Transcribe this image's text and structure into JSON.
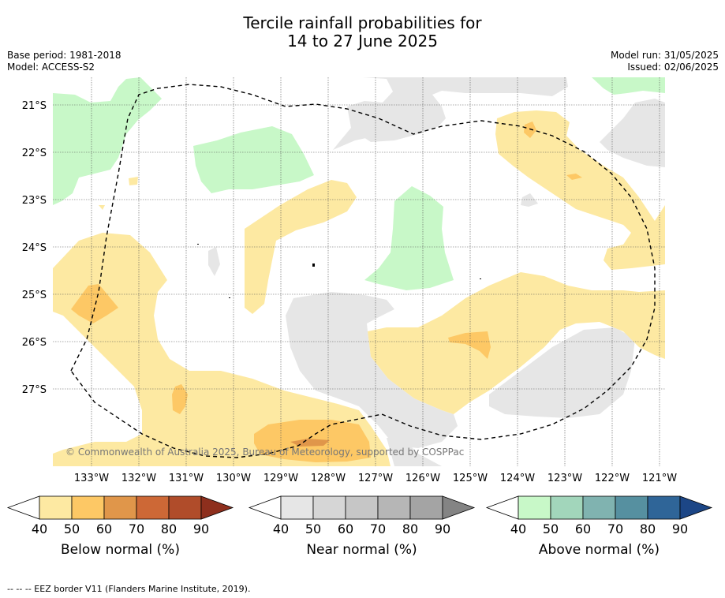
{
  "title_line1": "Tercile rainfall probabilities for",
  "title_line2": "14 to 27 June 2025",
  "base_period": "Base period: 1981-2018",
  "model": "Model: ACCESS-S2",
  "model_run": "Model run: 31/05/2025",
  "issued": "Issued: 02/06/2025",
  "copyright": "© Commonwealth of Australia 2025, Bureau of Meteorology, supported by COSPPac",
  "lat_labels": [
    "21°S",
    "22°S",
    "23°S",
    "24°S",
    "25°S",
    "26°S",
    "27°S"
  ],
  "lon_labels": [
    "133°W",
    "132°W",
    "131°W",
    "130°W",
    "129°W",
    "128°W",
    "127°W",
    "126°W",
    "125°W",
    "124°W",
    "123°W",
    "122°W",
    "121°W"
  ],
  "colorbars": [
    {
      "label": "Below normal (%)",
      "ticks": [
        "40",
        "50",
        "60",
        "70",
        "80",
        "90"
      ],
      "colors": [
        "#fde9a2",
        "#fdc865",
        "#e0964a",
        "#cd6836",
        "#b04c2a",
        "#8e2f1d"
      ]
    },
    {
      "label": "Near normal (%)",
      "ticks": [
        "40",
        "50",
        "60",
        "70",
        "80",
        "90"
      ],
      "colors": [
        "#e6e6e6",
        "#d6d6d6",
        "#c6c6c6",
        "#b6b6b6",
        "#a4a4a4",
        "#848484"
      ]
    },
    {
      "label": "Above normal (%)",
      "ticks": [
        "40",
        "50",
        "60",
        "70",
        "80",
        "90"
      ],
      "colors": [
        "#c8f8c8",
        "#a2d6bb",
        "#80b3b0",
        "#5690a0",
        "#2f6598",
        "#1c4686"
      ]
    }
  ],
  "footnote": "--  --  -- EEZ border V11 (Flanders Marine Institute, 2019)."
}
